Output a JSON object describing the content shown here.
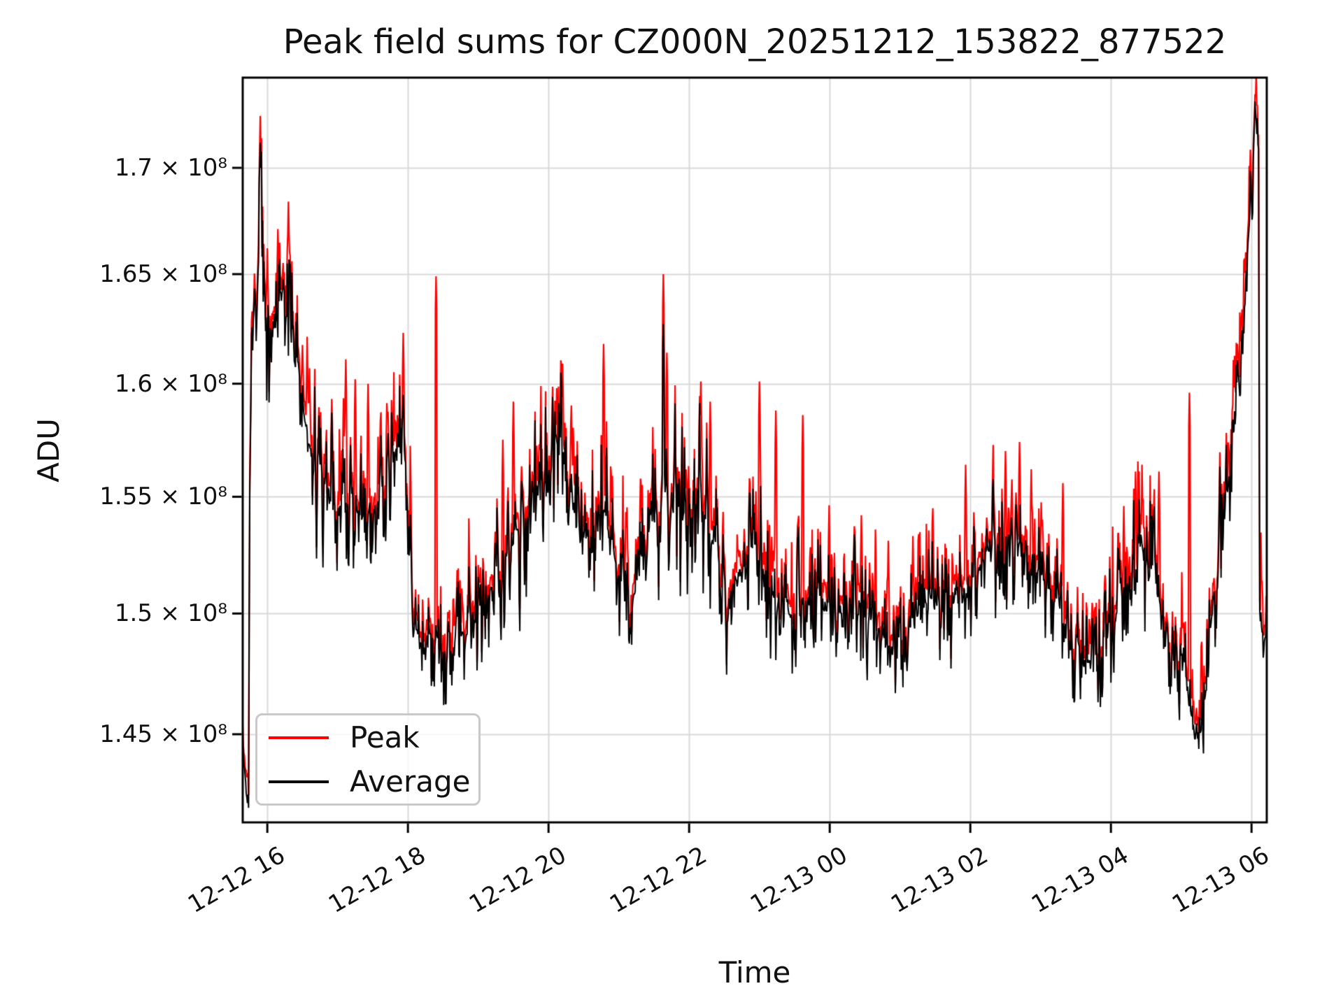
{
  "chart_data": {
    "type": "line",
    "title": "Peak field sums for CZ000N_20251212_153822_877522",
    "xlabel": "Time",
    "ylabel": "ADU",
    "yscale": "log",
    "grid": true,
    "legend_position": "lower left",
    "value_scale": 100000000,
    "value_unit": "ADU",
    "ylim_adu": [
      141470000,
      174370000
    ],
    "x_span_minutes": 874,
    "x_start": "2025-12-12 15:39",
    "x_ticks": [
      {
        "label": "12-12 16",
        "minute": 21
      },
      {
        "label": "12-12 18",
        "minute": 141
      },
      {
        "label": "12-12 20",
        "minute": 261
      },
      {
        "label": "12-12 22",
        "minute": 381
      },
      {
        "label": "12-13 00",
        "minute": 501
      },
      {
        "label": "12-13 02",
        "minute": 621
      },
      {
        "label": "12-13 04",
        "minute": 741
      },
      {
        "label": "12-13 06",
        "minute": 861
      }
    ],
    "y_ticks": [
      {
        "label": "1.7 × 10⁸",
        "value_adu": 170000000
      },
      {
        "label": "1.65 × 10⁸",
        "value_adu": 165000000
      },
      {
        "label": "1.6 × 10⁸",
        "value_adu": 160000000
      },
      {
        "label": "1.55 × 10⁸",
        "value_adu": 155000000
      },
      {
        "label": "1.5 × 10⁸",
        "value_adu": 150000000
      },
      {
        "label": "1.45 × 10⁸",
        "value_adu": 145000000
      }
    ],
    "series": [
      {
        "name": "Peak",
        "color": "#ff0000"
      },
      {
        "name": "Average",
        "color": "#000000"
      }
    ],
    "colors": {
      "grid": "#d9d9d9",
      "spine": "#000000",
      "background": "#ffffff"
    },
    "noise_seed": 20251212,
    "sample_step_minutes": 0.5,
    "average_anchors_1e8": [
      [
        0,
        1.447,
        0.004
      ],
      [
        3,
        1.428,
        0.004
      ],
      [
        5,
        1.417,
        0.003
      ],
      [
        6,
        1.56,
        0.008
      ],
      [
        8,
        1.62,
        0.009
      ],
      [
        12,
        1.633,
        0.01
      ],
      [
        14,
        1.663,
        0.011
      ],
      [
        16,
        1.695,
        0.009
      ],
      [
        17,
        1.668,
        0.01
      ],
      [
        20,
        1.633,
        0.012
      ],
      [
        25,
        1.618,
        0.012
      ],
      [
        30,
        1.627,
        0.012
      ],
      [
        35,
        1.64,
        0.013
      ],
      [
        40,
        1.617,
        0.012
      ],
      [
        46,
        1.6,
        0.011
      ],
      [
        52,
        1.585,
        0.01
      ],
      [
        60,
        1.567,
        0.01
      ],
      [
        70,
        1.556,
        0.01
      ],
      [
        80,
        1.546,
        0.009
      ],
      [
        90,
        1.551,
        0.009
      ],
      [
        100,
        1.541,
        0.008
      ],
      [
        110,
        1.546,
        0.008
      ],
      [
        120,
        1.551,
        0.008
      ],
      [
        128,
        1.566,
        0.008
      ],
      [
        134,
        1.585,
        0.007
      ],
      [
        137,
        1.592,
        0.006
      ],
      [
        141,
        1.545,
        0.006
      ],
      [
        146,
        1.498,
        0.006
      ],
      [
        152,
        1.488,
        0.006
      ],
      [
        162,
        1.491,
        0.007
      ],
      [
        172,
        1.487,
        0.008
      ],
      [
        182,
        1.493,
        0.008
      ],
      [
        192,
        1.491,
        0.008
      ],
      [
        202,
        1.499,
        0.008
      ],
      [
        212,
        1.511,
        0.009
      ],
      [
        222,
        1.521,
        0.01
      ],
      [
        232,
        1.531,
        0.01
      ],
      [
        242,
        1.546,
        0.011
      ],
      [
        252,
        1.551,
        0.011
      ],
      [
        260,
        1.561,
        0.011
      ],
      [
        268,
        1.573,
        0.01
      ],
      [
        274,
        1.566,
        0.01
      ],
      [
        284,
        1.538,
        0.01
      ],
      [
        292,
        1.53,
        0.01
      ],
      [
        300,
        1.541,
        0.011
      ],
      [
        308,
        1.546,
        0.012
      ],
      [
        316,
        1.526,
        0.01
      ],
      [
        324,
        1.511,
        0.008
      ],
      [
        332,
        1.506,
        0.008
      ],
      [
        340,
        1.516,
        0.009
      ],
      [
        348,
        1.531,
        0.01
      ],
      [
        356,
        1.546,
        0.011
      ],
      [
        359,
        1.561,
        0.012
      ],
      [
        364,
        1.541,
        0.012
      ],
      [
        372,
        1.546,
        0.012
      ],
      [
        381,
        1.541,
        0.011
      ],
      [
        390,
        1.546,
        0.011
      ],
      [
        398,
        1.539,
        0.01
      ],
      [
        406,
        1.521,
        0.01
      ],
      [
        414,
        1.509,
        0.009
      ],
      [
        422,
        1.516,
        0.009
      ],
      [
        430,
        1.521,
        0.009
      ],
      [
        438,
        1.526,
        0.009
      ],
      [
        446,
        1.519,
        0.009
      ],
      [
        454,
        1.506,
        0.008
      ],
      [
        462,
        1.501,
        0.008
      ],
      [
        470,
        1.498,
        0.008
      ],
      [
        478,
        1.501,
        0.008
      ],
      [
        488,
        1.506,
        0.008
      ],
      [
        498,
        1.501,
        0.007
      ],
      [
        508,
        1.498,
        0.007
      ],
      [
        518,
        1.501,
        0.008
      ],
      [
        528,
        1.505,
        0.008
      ],
      [
        538,
        1.497,
        0.007
      ],
      [
        548,
        1.489,
        0.007
      ],
      [
        558,
        1.485,
        0.007
      ],
      [
        568,
        1.491,
        0.007
      ],
      [
        578,
        1.501,
        0.008
      ],
      [
        588,
        1.506,
        0.008
      ],
      [
        598,
        1.501,
        0.008
      ],
      [
        608,
        1.506,
        0.009
      ],
      [
        616,
        1.511,
        0.009
      ],
      [
        626,
        1.518,
        0.009
      ],
      [
        636,
        1.526,
        0.01
      ],
      [
        646,
        1.531,
        0.01
      ],
      [
        656,
        1.533,
        0.01
      ],
      [
        668,
        1.529,
        0.009
      ],
      [
        678,
        1.521,
        0.009
      ],
      [
        688,
        1.511,
        0.008
      ],
      [
        698,
        1.501,
        0.008
      ],
      [
        708,
        1.491,
        0.008
      ],
      [
        718,
        1.483,
        0.007
      ],
      [
        728,
        1.479,
        0.007
      ],
      [
        736,
        1.489,
        0.008
      ],
      [
        744,
        1.499,
        0.009
      ],
      [
        752,
        1.511,
        0.01
      ],
      [
        760,
        1.521,
        0.01
      ],
      [
        768,
        1.526,
        0.01
      ],
      [
        776,
        1.516,
        0.01
      ],
      [
        784,
        1.501,
        0.009
      ],
      [
        792,
        1.491,
        0.008
      ],
      [
        800,
        1.479,
        0.007
      ],
      [
        806,
        1.466,
        0.006
      ],
      [
        812,
        1.453,
        0.005
      ],
      [
        816,
        1.447,
        0.005
      ],
      [
        820,
        1.456,
        0.006
      ],
      [
        826,
        1.491,
        0.008
      ],
      [
        832,
        1.521,
        0.008
      ],
      [
        838,
        1.546,
        0.008
      ],
      [
        844,
        1.566,
        0.007
      ],
      [
        850,
        1.601,
        0.006
      ],
      [
        856,
        1.646,
        0.005
      ],
      [
        860,
        1.681,
        0.005
      ],
      [
        864,
        1.713,
        0.006
      ],
      [
        866,
        1.726,
        0.004
      ],
      [
        867,
        1.7,
        0.003
      ],
      [
        868,
        1.5,
        0.004
      ],
      [
        870,
        1.492,
        0.004
      ],
      [
        874,
        1.49,
        0.004
      ]
    ],
    "peak_spikes_1e8": [
      [
        15,
        1.725
      ],
      [
        21,
        1.662
      ],
      [
        30,
        1.671
      ],
      [
        39,
        1.684
      ],
      [
        57,
        1.607
      ],
      [
        88,
        1.611
      ],
      [
        96,
        1.602
      ],
      [
        107,
        1.6
      ],
      [
        137,
        1.623
      ],
      [
        165,
        1.649
      ],
      [
        222,
        1.575
      ],
      [
        231,
        1.592
      ],
      [
        268,
        1.598
      ],
      [
        273,
        1.609
      ],
      [
        308,
        1.618
      ],
      [
        359,
        1.65
      ],
      [
        362,
        1.614
      ],
      [
        391,
        1.601
      ],
      [
        399,
        1.592
      ],
      [
        441,
        1.601
      ],
      [
        455,
        1.588
      ],
      [
        478,
        1.586
      ],
      [
        528,
        1.542
      ],
      [
        551,
        1.531
      ],
      [
        572,
        1.533
      ],
      [
        589,
        1.545
      ],
      [
        617,
        1.564
      ],
      [
        640,
        1.556
      ],
      [
        651,
        1.57
      ],
      [
        663,
        1.574
      ],
      [
        673,
        1.562
      ],
      [
        700,
        1.556
      ],
      [
        752,
        1.546
      ],
      [
        762,
        1.561
      ],
      [
        782,
        1.561
      ],
      [
        808,
        1.596
      ],
      [
        865,
        1.745
      ]
    ],
    "average_spikes_1e8": [
      [
        15,
        1.712
      ],
      [
        359,
        1.627
      ],
      [
        864,
        1.732
      ]
    ]
  }
}
